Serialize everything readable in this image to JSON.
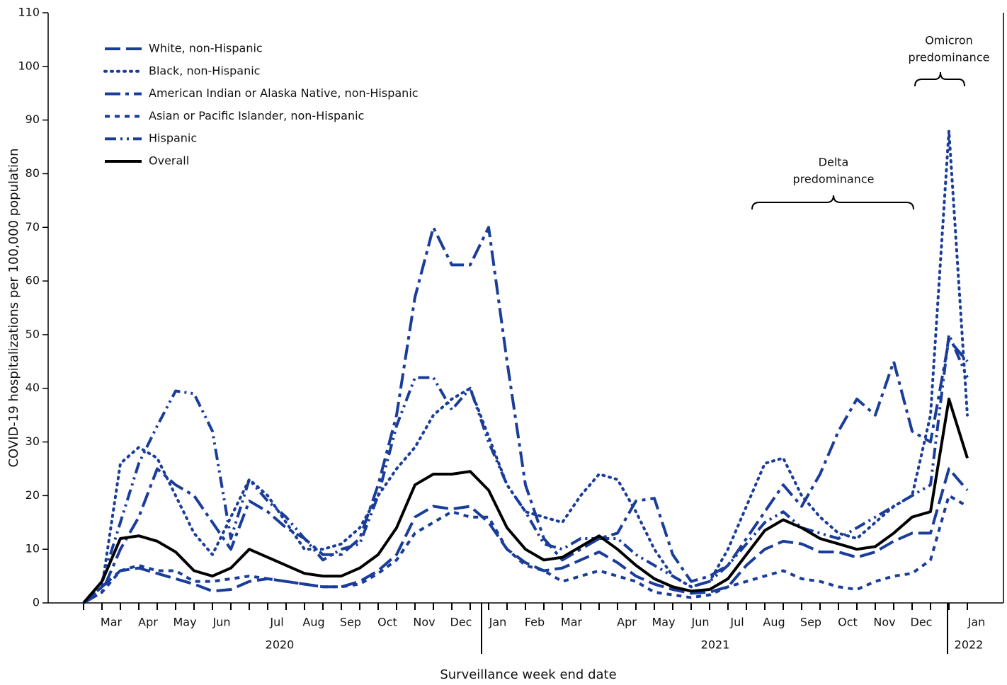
{
  "chart_data": {
    "type": "line",
    "y_label": "COVID-19 hospitalizations per 100,000 population",
    "x_label": "Surveillance week end date",
    "categories": [
      null,
      "Mar",
      null,
      "Apr",
      null,
      "May",
      null,
      "Jun",
      null,
      null,
      "Jul",
      null,
      "Aug",
      null,
      "Sep",
      null,
      "Oct",
      null,
      "Nov",
      null,
      "Dec",
      null,
      "Jan",
      null,
      "Feb",
      null,
      "Mar",
      null,
      null,
      "Apr",
      null,
      "May",
      null,
      "Jun",
      null,
      "Jul",
      null,
      "Aug",
      null,
      "Sep",
      null,
      "Oct",
      null,
      "Nov",
      null,
      "Dec",
      null,
      null,
      "Jan"
    ],
    "years": [
      "2020",
      "2021",
      "2022"
    ],
    "ylim": [
      0,
      110
    ],
    "yticks": [
      0,
      10,
      20,
      30,
      40,
      50,
      60,
      70,
      80,
      90,
      100,
      110
    ],
    "legend": "upper left",
    "series": [
      {
        "name": "White, non-Hispanic",
        "color": "#1a3d9a",
        "dash": "22,8",
        "values": [
          0,
          3,
          6,
          6.5,
          5.5,
          4.5,
          3.5,
          2.2,
          2.5,
          4,
          4.5,
          4,
          3.5,
          3,
          3,
          4,
          6,
          9,
          16,
          18,
          17.5,
          18,
          15,
          10,
          7.5,
          6,
          6.5,
          8,
          9.5,
          7.5,
          5,
          3.5,
          2.5,
          1.8,
          2,
          3,
          7,
          10,
          11.5,
          11,
          9.5,
          9.5,
          8.5,
          9.5,
          11.5,
          13,
          13,
          25,
          21
        ]
      },
      {
        "name": "Black, non-Hispanic",
        "color": "#1a3d9a",
        "dash": "2,7",
        "values": [
          0,
          3,
          26,
          29,
          27,
          20,
          13,
          9,
          16,
          23,
          20,
          15,
          10,
          10,
          11,
          14,
          20,
          25,
          29,
          35,
          38,
          40,
          31,
          22,
          17,
          16,
          15,
          20,
          24,
          23,
          17,
          10,
          5,
          3,
          4,
          10,
          18,
          26,
          27,
          20,
          16,
          13,
          12,
          15,
          18,
          20,
          35,
          88,
          35
        ]
      },
      {
        "name": "American Indian or Alaska Native, non-Hispanic",
        "color": "#1a3d9a",
        "dash": "22,7,5,7",
        "values": [
          0,
          2,
          10,
          16,
          25,
          22,
          20,
          15,
          10,
          19,
          17,
          14,
          12,
          9,
          9,
          12,
          22,
          35,
          57,
          70,
          63,
          63,
          70,
          45,
          22,
          12,
          8,
          10,
          12,
          13,
          19,
          19.5,
          9,
          4,
          5,
          7,
          12,
          17,
          22,
          18,
          24,
          32,
          38,
          35,
          45,
          32,
          30,
          49,
          45
        ]
      },
      {
        "name": "Asian or Pacific Islander, non-Hispanic",
        "color": "#1a3d9a",
        "dash": "7,7",
        "values": [
          0,
          2,
          6,
          7,
          6,
          6,
          4,
          4,
          4.5,
          5,
          4.5,
          4,
          3.5,
          3,
          3,
          3.5,
          5.5,
          8,
          13,
          15,
          17,
          16,
          16,
          10,
          7,
          6,
          4,
          5,
          6,
          5,
          4,
          2,
          1.5,
          1,
          1.5,
          3,
          4,
          5,
          6,
          4.5,
          4,
          3,
          2.5,
          4,
          5,
          5.5,
          8,
          20,
          18
        ]
      },
      {
        "name": "Hispanic",
        "color": "#1a3d9a",
        "dash": "16,6,3,6,3,6",
        "values": [
          0,
          4,
          15,
          26,
          33,
          39.5,
          39,
          32,
          12,
          23,
          19,
          16,
          12,
          8,
          10,
          11,
          20,
          33,
          42,
          42,
          36,
          40,
          30,
          22,
          17,
          11,
          10,
          12,
          12,
          12,
          9,
          7,
          5,
          3,
          4,
          7,
          11,
          15,
          17,
          14,
          13,
          12,
          14,
          16,
          18,
          20,
          22,
          50,
          42
        ]
      },
      {
        "name": "Overall",
        "color": "#000000",
        "dash": "none",
        "values": [
          0,
          4,
          12,
          12.5,
          11.5,
          9.5,
          6,
          5,
          6.5,
          10,
          8.5,
          7,
          5.5,
          5,
          5,
          6.5,
          9,
          14,
          22,
          24,
          24,
          24.5,
          21,
          14,
          10,
          8,
          8.5,
          10.5,
          12.5,
          10,
          7,
          4.5,
          3,
          2.2,
          2.5,
          4.5,
          9,
          13.5,
          15.5,
          14,
          12,
          11,
          10,
          10.5,
          13,
          16,
          17,
          38,
          27
        ]
      }
    ],
    "annotations": [
      {
        "lines": [
          "Delta",
          "predominance"
        ]
      },
      {
        "lines": [
          "Omicron",
          "predominance"
        ]
      }
    ]
  }
}
